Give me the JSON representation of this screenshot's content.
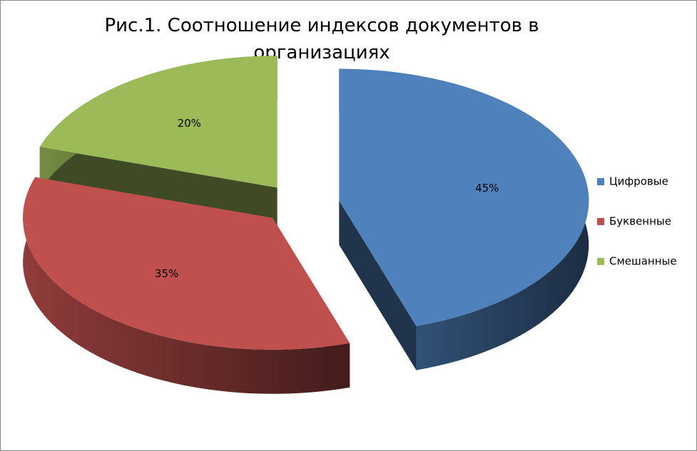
{
  "chart_data": {
    "type": "pie",
    "title": "Рис.1. Соотношение индексов документов в организациях",
    "categories": [
      "Цифровые",
      "Буквенные",
      "Смешанные"
    ],
    "values": [
      45,
      35,
      20
    ],
    "value_labels": [
      "45%",
      "35%",
      "20%"
    ],
    "colors": [
      "#4f81bd",
      "#c0504d",
      "#9bbb59"
    ],
    "legend": "right",
    "exploded": true,
    "three_d": true
  }
}
